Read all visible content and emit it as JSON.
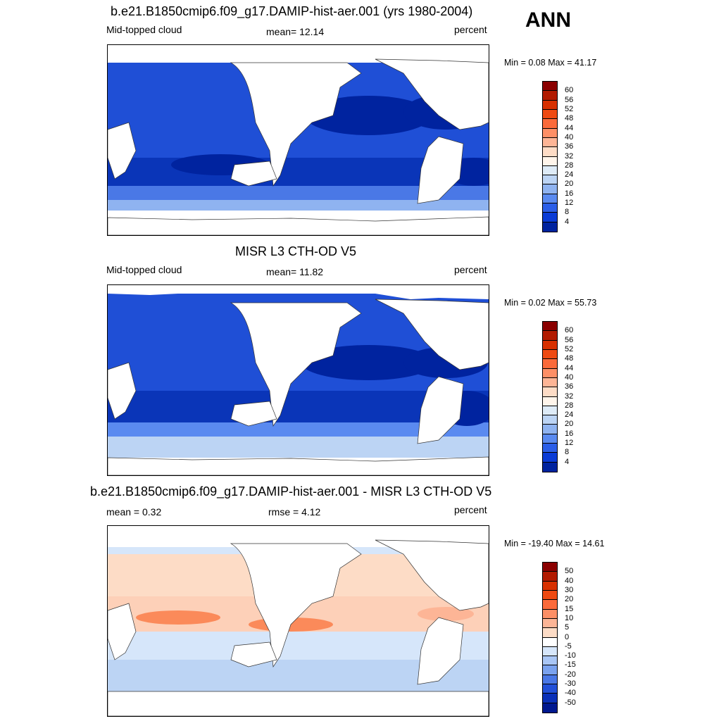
{
  "season": "ANN",
  "panels": [
    {
      "title": "b.e21.B1850cmip6.f09_g17.DAMIP-hist-aer.001 (yrs 1980-2004)",
      "left": "Mid-topped cloud",
      "center": "mean=  12.14",
      "right": "percent",
      "minmax": "Min =   0.08 Max =  41.17",
      "cbar": {
        "labels": [
          "60",
          "56",
          "52",
          "48",
          "44",
          "40",
          "36",
          "32",
          "28",
          "24",
          "20",
          "16",
          "12",
          "8",
          "4"
        ],
        "colors": [
          "#8b0000",
          "#b21a00",
          "#d83000",
          "#ef4a12",
          "#fb6a3a",
          "#fd8f66",
          "#fdb596",
          "#fddcc6",
          "#fff5eb",
          "#deebf7",
          "#bcd4f4",
          "#8fb3f0",
          "#5a8af0",
          "#2b5ee8",
          "#0a3bd6",
          "#00239f"
        ]
      }
    },
    {
      "title": "MISR L3 CTH-OD V5",
      "left": "Mid-topped cloud",
      "center": "mean=  11.82",
      "right": "percent",
      "minmax": "Min =   0.02 Max =  55.73",
      "cbar": {
        "labels": [
          "60",
          "56",
          "52",
          "48",
          "44",
          "40",
          "36",
          "32",
          "28",
          "24",
          "20",
          "16",
          "12",
          "8",
          "4"
        ],
        "colors": [
          "#8b0000",
          "#b21a00",
          "#d83000",
          "#ef4a12",
          "#fb6a3a",
          "#fd8f66",
          "#fdb596",
          "#fddcc6",
          "#fff5eb",
          "#deebf7",
          "#bcd4f4",
          "#8fb3f0",
          "#5a8af0",
          "#2b5ee8",
          "#0a3bd6",
          "#00239f"
        ]
      }
    },
    {
      "title": "b.e21.B1850cmip6.f09_g17.DAMIP-hist-aer.001 - MISR L3 CTH-OD V5",
      "left": "mean =   0.32",
      "center": "rmse =   4.12",
      "right": "percent",
      "minmax": "Min = -19.40 Max =  14.61",
      "cbar": {
        "labels": [
          "50",
          "40",
          "30",
          "20",
          "15",
          "10",
          "5",
          "0",
          "-5",
          "-10",
          "-15",
          "-20",
          "-30",
          "-40",
          "-50"
        ],
        "colors": [
          "#8b0000",
          "#b21a00",
          "#d83000",
          "#ef4a12",
          "#fb6a3a",
          "#fd8f66",
          "#fdb596",
          "#fddcc6",
          "#ffffff",
          "#d6e6fa",
          "#a9c6f5",
          "#7aa2ee",
          "#4a78e6",
          "#2250d8",
          "#0a30b8",
          "#00188f"
        ]
      }
    }
  ]
}
